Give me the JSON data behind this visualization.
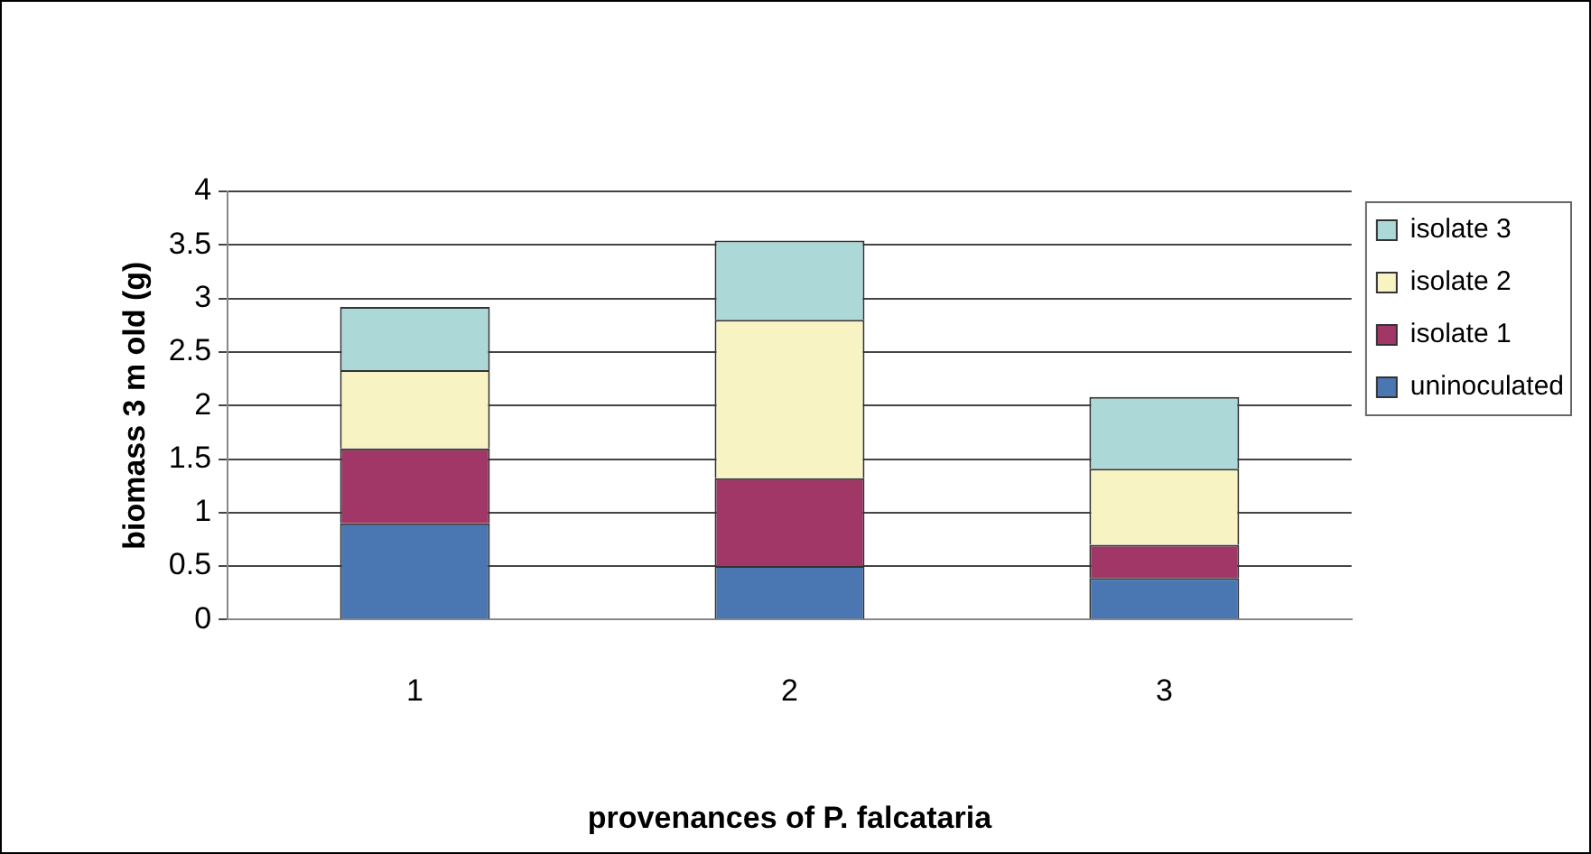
{
  "chart_data": {
    "type": "bar",
    "stacked": true,
    "xlabel": "provenances of P. falcataria",
    "ylabel": "biomass 3 m old (g)",
    "categories": [
      "1",
      "2",
      "3"
    ],
    "series": [
      {
        "name": "uninoculated",
        "color": "#4a76b2",
        "values": [
          0.9,
          0.5,
          0.39
        ]
      },
      {
        "name": "isolate 1",
        "color": "#a03766",
        "values": [
          0.7,
          0.82,
          0.31
        ]
      },
      {
        "name": "isolate 2",
        "color": "#f7f3c2",
        "values": [
          0.73,
          1.48,
          0.71
        ]
      },
      {
        "name": "isolate 3",
        "color": "#acd8d8",
        "values": [
          0.59,
          0.74,
          0.67
        ]
      }
    ],
    "ylim": [
      0,
      4
    ],
    "yticks": [
      0,
      0.5,
      1,
      1.5,
      2,
      2.5,
      3,
      3.5,
      4
    ],
    "grid": "y",
    "legend": "right"
  }
}
